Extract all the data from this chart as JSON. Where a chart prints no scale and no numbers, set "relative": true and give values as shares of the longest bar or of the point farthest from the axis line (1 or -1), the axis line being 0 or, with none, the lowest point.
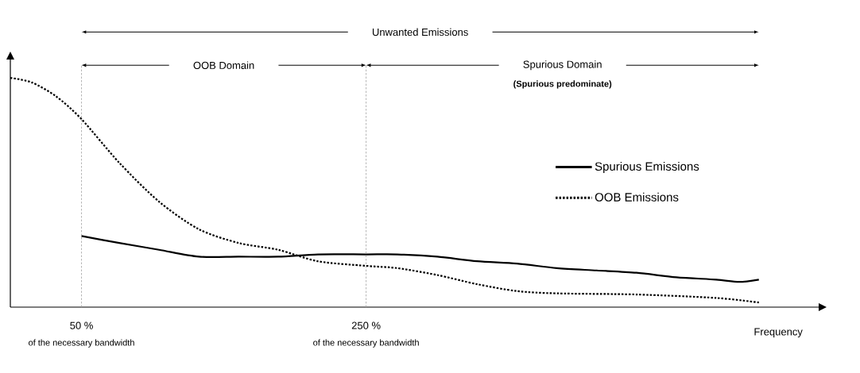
{
  "chart_data": {
    "type": "line",
    "relative": true,
    "xlabel": "Frequency",
    "xlim": [
      0,
      568
    ],
    "xticks": [
      {
        "value": 50,
        "label": "50 %"
      },
      {
        "value": 250,
        "label": "250 %"
      }
    ],
    "marker": "none",
    "legend": "right",
    "series": [
      {
        "name": "Spurious Emissions",
        "color": "#000000",
        "line_style": "solid",
        "x": [
          50,
          76.5,
          104.5,
          132.4,
          160.3,
          188.3,
          216.2,
          250,
          272,
          300,
          328,
          356,
          384,
          412,
          440,
          468,
          496,
          512,
          526
        ],
        "values": [
          0.31,
          0.28,
          0.25,
          0.22,
          0.22,
          0.22,
          0.23,
          0.23,
          0.23,
          0.22,
          0.2,
          0.19,
          0.17,
          0.16,
          0.15,
          0.13,
          0.12,
          0.11,
          0.12
        ]
      },
      {
        "name": "OOB Emissions",
        "color": "#000000",
        "line_style": "dotted",
        "x": [
          0,
          15,
          32,
          50,
          76.5,
          104.5,
          132.4,
          160.3,
          188.3,
          216.2,
          250,
          272,
          300,
          328,
          356,
          384,
          440,
          496,
          526
        ],
        "values": [
          1.0,
          0.98,
          0.92,
          0.82,
          0.63,
          0.46,
          0.34,
          0.28,
          0.25,
          0.2,
          0.18,
          0.17,
          0.14,
          0.1,
          0.07,
          0.06,
          0.055,
          0.04,
          0.02
        ]
      }
    ],
    "ref_lines": [
      {
        "axis": "x",
        "value": 50,
        "color": "#a0a0a0",
        "line_style": "dotted"
      },
      {
        "axis": "x",
        "value": 250,
        "color": "#a0a0a0",
        "line_style": "dotted"
      }
    ],
    "annotations": [
      "Unwanted Emissions",
      "OOB Domain",
      "Spurious Domain",
      "(Spurious predominate)",
      "of the necessary bandwidth",
      "of the necessary bandwidth"
    ]
  }
}
